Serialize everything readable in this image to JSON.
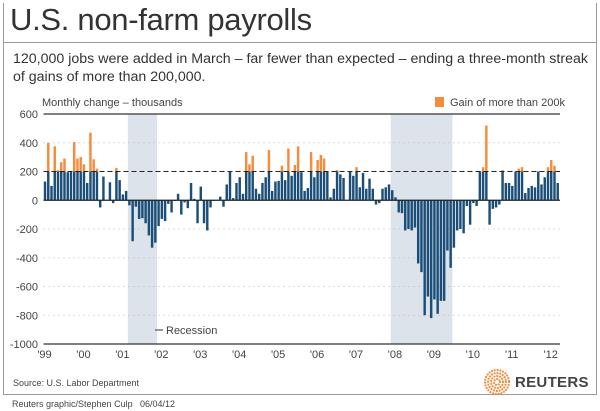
{
  "title": "U.S. non-farm payrolls",
  "subtitle": "120,000 jobs were added in March – far fewer than expected – ending a three-month streak of gains of more than 200,000.",
  "source": "Source: U.S. Labor Department",
  "credit": "Reuters graphic/Stephen Culp",
  "date": "06/04/12",
  "logo": "REUTERS",
  "colors": {
    "bar": "#1b4f79",
    "above_threshold": "#f58c3c",
    "recession": "#dce3ea"
  },
  "chart_data": {
    "type": "bar",
    "ylabel": "Monthly change – thousands",
    "ylim": [
      -1000,
      600
    ],
    "yticks": [
      "600",
      "400",
      "200",
      "0",
      "-200",
      "-400",
      "-600",
      "-800",
      "-1000"
    ],
    "xticks": [
      "'99",
      "'00",
      "'01",
      "'02",
      "'03",
      "'04",
      "'05",
      "'06",
      "'07",
      "'08",
      "'09",
      "'10",
      "'11",
      "'12"
    ],
    "threshold": 200,
    "legend": {
      "threshold_label": "Gain of more than 200k",
      "recession_label": "Recession",
      "placement": "top-right"
    },
    "recessions": [
      [
        "2001-03",
        "2001-11"
      ],
      [
        "2007-12",
        "2009-06"
      ]
    ],
    "first_month": "1999-01",
    "values": [
      130,
      400,
      100,
      375,
      210,
      265,
      290,
      195,
      205,
      405,
      290,
      300,
      250,
      120,
      470,
      285,
      220,
      -50,
      165,
      0,
      125,
      -20,
      225,
      140,
      40,
      65,
      -35,
      -285,
      -45,
      -130,
      -125,
      -160,
      -245,
      -330,
      -295,
      -180,
      -130,
      -145,
      -25,
      -85,
      -5,
      45,
      -100,
      -15,
      -55,
      120,
      10,
      -160,
      95,
      -160,
      -210,
      -50,
      -5,
      0,
      25,
      -45,
      110,
      200,
      15,
      120,
      160,
      45,
      335,
      250,
      310,
      80,
      45,
      120,
      160,
      350,
      65,
      130,
      135,
      240,
      140,
      360,
      170,
      245,
      375,
      195,
      65,
      85,
      335,
      160,
      280,
      315,
      290,
      200,
      20,
      80,
      210,
      180,
      155,
      0,
      200,
      170,
      230,
      90,
      190,
      80,
      150,
      80,
      -30,
      -20,
      80,
      90,
      110,
      70,
      20,
      -85,
      -90,
      -210,
      -200,
      -210,
      -190,
      -440,
      -500,
      -800,
      -670,
      -820,
      -690,
      -790,
      -700,
      -700,
      -350,
      -470,
      -330,
      -210,
      -200,
      -230,
      -40,
      -170,
      -20,
      -40,
      200,
      230,
      520,
      -170,
      -60,
      -50,
      -30,
      210,
      120,
      120,
      100,
      200,
      220,
      230,
      50,
      85,
      100,
      90,
      200,
      110,
      160,
      230,
      280,
      240,
      120
    ]
  }
}
